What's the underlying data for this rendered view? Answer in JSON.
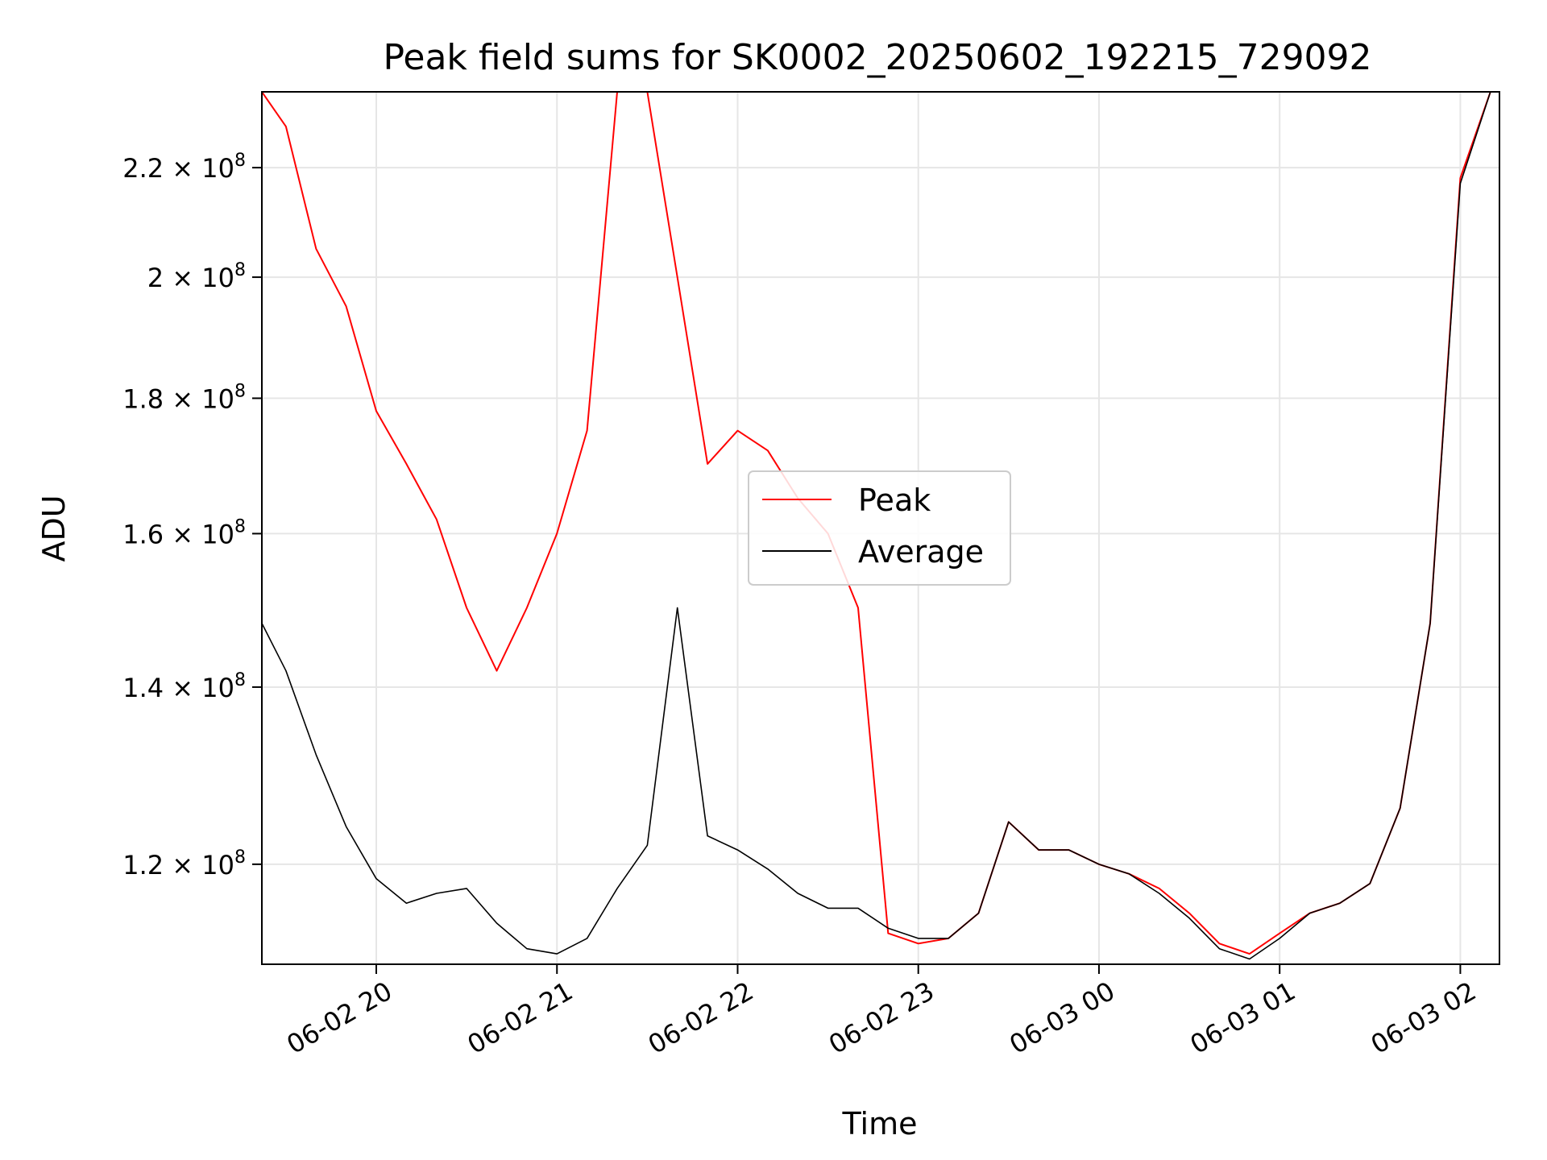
{
  "chart_data": {
    "type": "line",
    "title": "Peak field sums for SK0002_20250602_192215_729092",
    "xlabel": "Time",
    "ylabel": "ADU",
    "x_range": [
      "2025-06-02 19:22",
      "2025-06-03 02:13"
    ],
    "ylim": [
      110000000,
      235000000
    ],
    "y_scale": "log",
    "grid": true,
    "legend_position": "center",
    "x_ticks": [
      "06-02 20",
      "06-02 21",
      "06-02 22",
      "06-02 23",
      "06-03 00",
      "06-03 01",
      "06-03 02"
    ],
    "y_ticks": [
      {
        "value": 120000000,
        "mantissa": "1.2",
        "exp": "8"
      },
      {
        "value": 140000000,
        "mantissa": "1.4",
        "exp": "8"
      },
      {
        "value": 160000000,
        "mantissa": "1.6",
        "exp": "8"
      },
      {
        "value": 180000000,
        "mantissa": "1.8",
        "exp": "8"
      },
      {
        "value": 200000000,
        "mantissa": "2",
        "exp": "8"
      },
      {
        "value": 220000000,
        "mantissa": "2.2",
        "exp": "8"
      }
    ],
    "series": [
      {
        "name": "Peak",
        "color": "#ff0000",
        "x": [
          "2025-06-02 19:22",
          "2025-06-02 19:30",
          "2025-06-02 19:40",
          "2025-06-02 19:50",
          "2025-06-02 20:00",
          "2025-06-02 20:10",
          "2025-06-02 20:20",
          "2025-06-02 20:30",
          "2025-06-02 20:40",
          "2025-06-02 20:50",
          "2025-06-02 21:00",
          "2025-06-02 21:10",
          "2025-06-02 21:20",
          "2025-06-02 21:30",
          "2025-06-02 21:40",
          "2025-06-02 21:50",
          "2025-06-02 22:00",
          "2025-06-02 22:10",
          "2025-06-02 22:20",
          "2025-06-02 22:30",
          "2025-06-02 22:40",
          "2025-06-02 22:50",
          "2025-06-02 23:00",
          "2025-06-02 23:10",
          "2025-06-02 23:20",
          "2025-06-02 23:30",
          "2025-06-02 23:40",
          "2025-06-02 23:50",
          "2025-06-03 00:00",
          "2025-06-03 00:10",
          "2025-06-03 00:20",
          "2025-06-03 00:30",
          "2025-06-03 00:40",
          "2025-06-03 00:50",
          "2025-06-03 01:00",
          "2025-06-03 01:10",
          "2025-06-03 01:20",
          "2025-06-03 01:30",
          "2025-06-03 01:40",
          "2025-06-03 01:50",
          "2025-06-03 02:00",
          "2025-06-03 02:10"
        ],
        "values": [
          235000000,
          228000000,
          205000000,
          195000000,
          178000000,
          170000000,
          162000000,
          150000000,
          142000000,
          150000000,
          160000000,
          175000000,
          235000000,
          235000000,
          200000000,
          170000000,
          175000000,
          172000000,
          165000000,
          160000000,
          150000000,
          113000000,
          112000000,
          112500000,
          115000000,
          124500000,
          121500000,
          121500000,
          120000000,
          119000000,
          117500000,
          115000000,
          112000000,
          111000000,
          113000000,
          115000000,
          116000000,
          118000000,
          126000000,
          148000000,
          218000000,
          235000000
        ]
      },
      {
        "name": "Average",
        "color": "#000000",
        "x": [
          "2025-06-02 19:22",
          "2025-06-02 19:30",
          "2025-06-02 19:40",
          "2025-06-02 19:50",
          "2025-06-02 20:00",
          "2025-06-02 20:10",
          "2025-06-02 20:20",
          "2025-06-02 20:30",
          "2025-06-02 20:40",
          "2025-06-02 20:50",
          "2025-06-02 21:00",
          "2025-06-02 21:10",
          "2025-06-02 21:20",
          "2025-06-02 21:30",
          "2025-06-02 21:40",
          "2025-06-02 21:50",
          "2025-06-02 22:00",
          "2025-06-02 22:10",
          "2025-06-02 22:20",
          "2025-06-02 22:30",
          "2025-06-02 22:40",
          "2025-06-02 22:50",
          "2025-06-02 23:00",
          "2025-06-02 23:10",
          "2025-06-02 23:20",
          "2025-06-02 23:30",
          "2025-06-02 23:40",
          "2025-06-02 23:50",
          "2025-06-03 00:00",
          "2025-06-03 00:10",
          "2025-06-03 00:20",
          "2025-06-03 00:30",
          "2025-06-03 00:40",
          "2025-06-03 00:50",
          "2025-06-03 01:00",
          "2025-06-03 01:10",
          "2025-06-03 01:20",
          "2025-06-03 01:30",
          "2025-06-03 01:40",
          "2025-06-03 01:50",
          "2025-06-03 02:00",
          "2025-06-03 02:10"
        ],
        "values": [
          148000000,
          142000000,
          132000000,
          124000000,
          118500000,
          116000000,
          117000000,
          117500000,
          114000000,
          111500000,
          111000000,
          112500000,
          117500000,
          122000000,
          150000000,
          123000000,
          121500000,
          119500000,
          117000000,
          115500000,
          115500000,
          113500000,
          112500000,
          112500000,
          115000000,
          124500000,
          121500000,
          121500000,
          120000000,
          119000000,
          117000000,
          114500000,
          111500000,
          110500000,
          112500000,
          115000000,
          116000000,
          118000000,
          126000000,
          148000000,
          217000000,
          235000000
        ]
      }
    ]
  }
}
